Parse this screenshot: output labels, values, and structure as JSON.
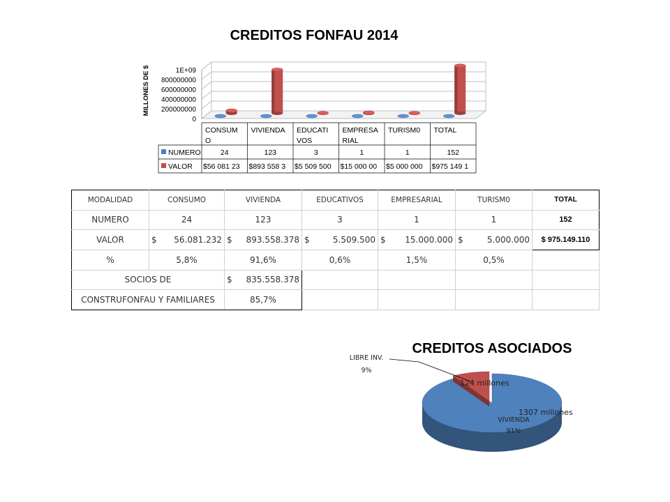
{
  "chart_data": [
    {
      "type": "bar",
      "title": "CREDITOS FONFAU 2014",
      "ylabel": "MILLONES DE $",
      "xlabel": "",
      "categories": [
        "CONSUMO",
        "VIVIENDA",
        "EDUCATIVOS",
        "EMPRESARIAL",
        "TURISM0",
        "TOTAL"
      ],
      "category_labels_wrapped": [
        [
          "CONSUM",
          "O"
        ],
        [
          "VIVIENDA"
        ],
        [
          "EDUCATI",
          "VOS"
        ],
        [
          "EMPRESA",
          "RIAL"
        ],
        [
          "TURISM0"
        ],
        [
          "TOTAL"
        ]
      ],
      "series": [
        {
          "name": "NUMERO",
          "values": [
            24,
            123,
            3,
            1,
            1,
            152
          ],
          "color": "#4f81bd",
          "labels": [
            "24",
            "123",
            "3",
            "1",
            "1",
            "152"
          ]
        },
        {
          "name": "VALOR",
          "values": [
            56081232,
            893558378,
            5509500,
            15000000,
            5000000,
            975149110
          ],
          "color": "#c0504d",
          "labels": [
            "$56 081 23",
            "$893 558 3",
            "$5 509 500",
            "$15 000 00",
            "$5 000 000",
            "$975 149 1"
          ]
        }
      ],
      "ylim": [
        0,
        1000000000
      ],
      "yticks": [
        "0",
        "200000000",
        "400000000",
        "600000000",
        "800000000",
        "1E+09"
      ],
      "ytick_values": [
        0,
        200000000,
        400000000,
        600000000,
        800000000,
        1000000000
      ],
      "grid": true,
      "data_table": true
    },
    {
      "type": "pie",
      "title": "CREDITOS ASOCIADOS",
      "slices": [
        {
          "label": "LIBRE INV.",
          "percent_label": "9%",
          "value": 124,
          "value_label": "124 millones",
          "color": "#c0504d"
        },
        {
          "label": "VIVIENDA",
          "percent_label": "91%",
          "value": 1307,
          "value_label": "1307 millones",
          "color": "#4f81bd"
        }
      ]
    }
  ],
  "table": {
    "header": [
      "MODALIDAD",
      "CONSUMO",
      "VIVIENDA",
      "EDUCATIVOS",
      "EMPRESARIAL",
      "TURISM0",
      "TOTAL"
    ],
    "numero": {
      "label": "NUMERO",
      "values": [
        "24",
        "123",
        "3",
        "1",
        "1"
      ],
      "total": "152"
    },
    "valor": {
      "label": "VALOR",
      "currency": "$",
      "values": [
        "56.081.232",
        "893.558.378",
        "5.509.500",
        "15.000.000",
        "5.000.000"
      ],
      "total": "$ 975.149.110"
    },
    "percent": {
      "label": "%",
      "values": [
        "5,8%",
        "91,6%",
        "0,6%",
        "1,5%",
        "0,5%"
      ]
    },
    "socios": {
      "label": "SOCIOS DE",
      "currency": "$",
      "value": "835.558.378"
    },
    "construfonfau": {
      "label": "CONSTRUFONFAU Y FAMILIARES",
      "value": "85,7%"
    }
  }
}
